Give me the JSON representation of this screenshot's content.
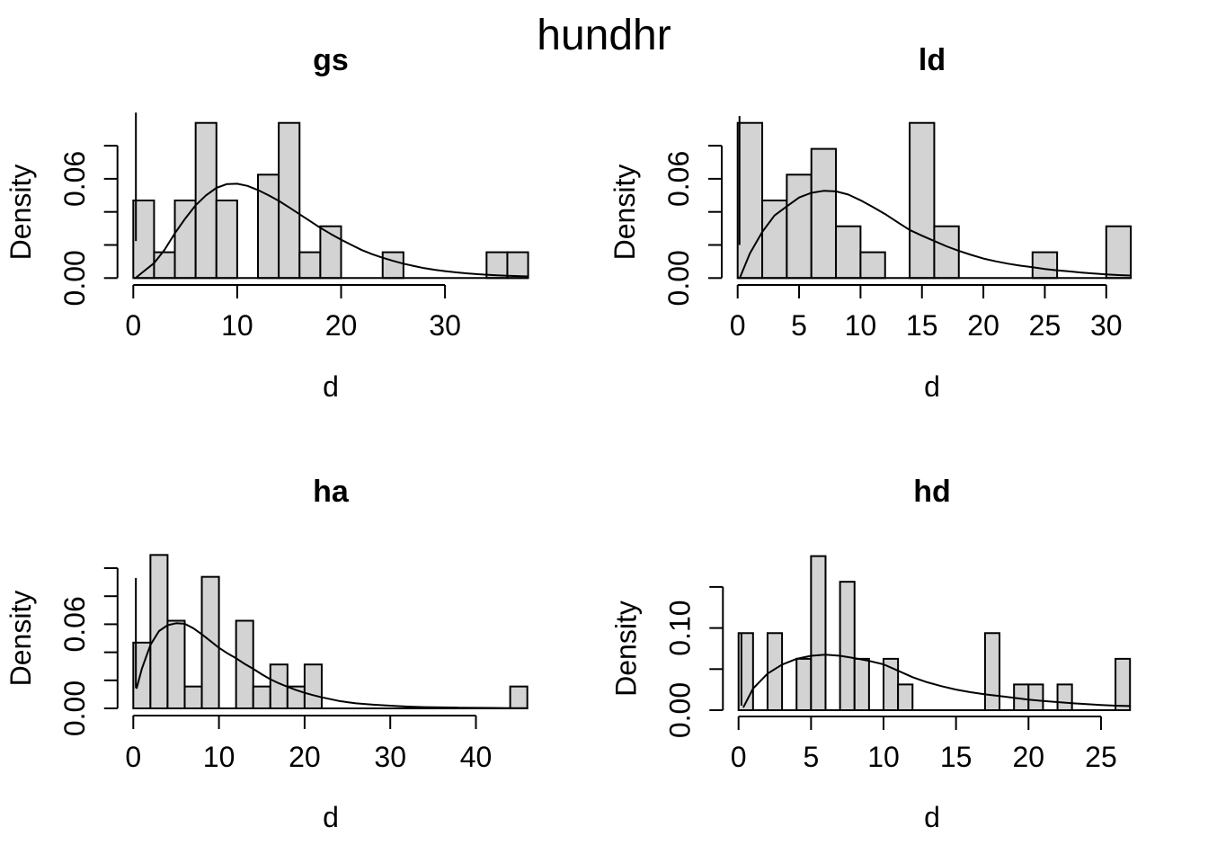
{
  "chart_meta": {
    "title": "hundhr",
    "background_color": "#ffffff",
    "bar_fill_color": "#d3d3d3",
    "bar_border_color": "#000000",
    "curve_color": "#000000",
    "grid": "off",
    "legend": "none"
  },
  "chart_data": [
    {
      "id": "gs",
      "type": "bar",
      "subtype": "histogram-with-density-curve",
      "title": "gs",
      "xlabel": "d",
      "ylabel": "Density",
      "bin_start": 0,
      "bin_width": 2,
      "densities": [
        0.0469,
        0.0156,
        0.0469,
        0.0938,
        0.0469,
        0,
        0.0625,
        0.0938,
        0.0156,
        0.0313,
        0,
        0,
        0.0156,
        0,
        0,
        0,
        0,
        0.0156,
        0.0156
      ],
      "x_ticks": [
        0,
        10,
        20,
        30
      ],
      "x_tick_labels": [
        "0",
        "10",
        "20",
        "30"
      ],
      "y_ticks": [
        0,
        0.02,
        0.04,
        0.06,
        0.08
      ],
      "y_labeled_ticks": [
        {
          "value": 0,
          "label": "0.00"
        },
        {
          "value": 0.06,
          "label": "0.06"
        }
      ],
      "xlim": [
        0,
        38
      ],
      "ylim": [
        0,
        0.0975
      ],
      "spike": {
        "x": 0.25,
        "from": 0.0224,
        "to": 0.1
      },
      "curve": [
        [
          0.3,
          0.0005
        ],
        [
          1,
          0.004
        ],
        [
          2,
          0.009
        ],
        [
          3,
          0.017
        ],
        [
          4,
          0.027
        ],
        [
          5,
          0.036
        ],
        [
          6,
          0.044
        ],
        [
          7,
          0.05
        ],
        [
          8,
          0.0545
        ],
        [
          9,
          0.0568
        ],
        [
          10,
          0.057
        ],
        [
          11,
          0.0557
        ],
        [
          12,
          0.0532
        ],
        [
          13,
          0.0501
        ],
        [
          14,
          0.0467
        ],
        [
          15,
          0.0427
        ],
        [
          16,
          0.0386
        ],
        [
          17,
          0.0345
        ],
        [
          18,
          0.0304
        ],
        [
          19,
          0.0267
        ],
        [
          20,
          0.0232
        ],
        [
          21,
          0.02
        ],
        [
          22,
          0.0169
        ],
        [
          23,
          0.0144
        ],
        [
          24,
          0.0123
        ],
        [
          25,
          0.0104
        ],
        [
          26,
          0.0087
        ],
        [
          27,
          0.0073
        ],
        [
          28,
          0.006
        ],
        [
          29,
          0.005
        ],
        [
          30,
          0.0042
        ],
        [
          31,
          0.0035
        ],
        [
          32,
          0.0029
        ],
        [
          33,
          0.0024
        ],
        [
          34,
          0.002
        ],
        [
          35,
          0.0017
        ],
        [
          36,
          0.0014
        ],
        [
          37,
          0.0012
        ],
        [
          38,
          0.001
        ]
      ]
    },
    {
      "id": "ld",
      "type": "bar",
      "subtype": "histogram-with-density-curve",
      "title": "ld",
      "xlabel": "d",
      "ylabel": "Density",
      "bin_start": 0,
      "bin_width": 2,
      "densities": [
        0.0938,
        0.0469,
        0.0625,
        0.0781,
        0.0313,
        0.0156,
        0,
        0.0938,
        0.0313,
        0,
        0,
        0,
        0.0156,
        0,
        0,
        0.0313
      ],
      "x_ticks": [
        0,
        5,
        10,
        15,
        20,
        25,
        30
      ],
      "x_tick_labels": [
        "0",
        "5",
        "10",
        "15",
        "20",
        "25",
        "30"
      ],
      "y_ticks": [
        0,
        0.02,
        0.04,
        0.06,
        0.08
      ],
      "y_labeled_ticks": [
        {
          "value": 0,
          "label": "0.00"
        },
        {
          "value": 0.06,
          "label": "0.06"
        }
      ],
      "xlim": [
        0,
        32
      ],
      "ylim": [
        0,
        0.0975
      ],
      "spike": {
        "x": 0.15,
        "from": 0.02,
        "to": 0.098
      },
      "curve": [
        [
          0.2,
          0.0005
        ],
        [
          1,
          0.015
        ],
        [
          2,
          0.0278
        ],
        [
          3,
          0.0378
        ],
        [
          4,
          0.0433
        ],
        [
          5,
          0.0487
        ],
        [
          6,
          0.0515
        ],
        [
          7,
          0.0527
        ],
        [
          8,
          0.0524
        ],
        [
          9,
          0.0505
        ],
        [
          10,
          0.047
        ],
        [
          11,
          0.043
        ],
        [
          12,
          0.0387
        ],
        [
          13,
          0.0338
        ],
        [
          14,
          0.0291
        ],
        [
          15,
          0.0256
        ],
        [
          16,
          0.0224
        ],
        [
          17,
          0.0192
        ],
        [
          18,
          0.0164
        ],
        [
          19,
          0.014
        ],
        [
          20,
          0.0118
        ],
        [
          21,
          0.0101
        ],
        [
          22,
          0.0087
        ],
        [
          23,
          0.0075
        ],
        [
          24,
          0.0065
        ],
        [
          25,
          0.0055
        ],
        [
          26,
          0.0047
        ],
        [
          27,
          0.004
        ],
        [
          28,
          0.0033
        ],
        [
          29,
          0.0027
        ],
        [
          30,
          0.0022
        ],
        [
          31,
          0.0018
        ],
        [
          32,
          0.0015
        ]
      ]
    },
    {
      "id": "ha",
      "type": "bar",
      "subtype": "histogram-with-density-curve",
      "title": "ha",
      "xlabel": "d",
      "ylabel": "Density",
      "bin_start": 0,
      "bin_width": 2,
      "densities": [
        0.0469,
        0.1094,
        0.0625,
        0.0156,
        0.0938,
        0,
        0.0625,
        0.0156,
        0.0313,
        0.0156,
        0.0313,
        0,
        0,
        0,
        0,
        0,
        0,
        0,
        0,
        0,
        0,
        0,
        0.0156
      ],
      "x_ticks": [
        0,
        10,
        20,
        30,
        40
      ],
      "x_tick_labels": [
        "0",
        "10",
        "20",
        "30",
        "40"
      ],
      "y_ticks": [
        0,
        0.02,
        0.04,
        0.06,
        0.08,
        0.1
      ],
      "y_labeled_ticks": [
        {
          "value": 0,
          "label": "0.00"
        },
        {
          "value": 0.06,
          "label": "0.06"
        }
      ],
      "xlim": [
        0,
        46
      ],
      "ylim": [
        0,
        0.114
      ],
      "spike": {
        "x": 0.3,
        "from": 0.0145,
        "to": 0.093
      },
      "curve": [
        [
          0.4,
          0.0145
        ],
        [
          1,
          0.0282
        ],
        [
          2,
          0.0453
        ],
        [
          3,
          0.0551
        ],
        [
          4,
          0.0593
        ],
        [
          5,
          0.0607
        ],
        [
          6,
          0.0603
        ],
        [
          7,
          0.0572
        ],
        [
          8,
          0.0528
        ],
        [
          9,
          0.048
        ],
        [
          10,
          0.0432
        ],
        [
          11,
          0.0392
        ],
        [
          12,
          0.0357
        ],
        [
          13,
          0.0317
        ],
        [
          14,
          0.0282
        ],
        [
          15,
          0.0243
        ],
        [
          16,
          0.0208
        ],
        [
          17,
          0.0179
        ],
        [
          18,
          0.0154
        ],
        [
          19,
          0.0131
        ],
        [
          20,
          0.0111
        ],
        [
          21,
          0.0094
        ],
        [
          22,
          0.0079
        ],
        [
          23,
          0.0066
        ],
        [
          24,
          0.0053
        ],
        [
          25,
          0.0044
        ],
        [
          26,
          0.0036
        ],
        [
          28,
          0.0026
        ],
        [
          30,
          0.0019
        ],
        [
          32,
          0.0013
        ],
        [
          34,
          0.0009
        ],
        [
          36,
          0.0007
        ],
        [
          38,
          0.0005
        ],
        [
          40,
          0.0004
        ],
        [
          42,
          0.0003
        ],
        [
          44,
          0.0002
        ],
        [
          46,
          0.0002
        ]
      ]
    },
    {
      "id": "hd",
      "type": "bar",
      "subtype": "histogram-with-density-curve",
      "title": "hd",
      "xlabel": "d",
      "ylabel": "Density",
      "bin_start": 0,
      "bin_width": 1,
      "densities": [
        0.0938,
        0,
        0.0938,
        0,
        0.0625,
        0.1875,
        0,
        0.1563,
        0.0625,
        0,
        0.0625,
        0.0313,
        0,
        0,
        0,
        0,
        0,
        0.0938,
        0,
        0.0313,
        0.0313,
        0,
        0.0313,
        0,
        0,
        0,
        0.0625
      ],
      "x_ticks": [
        0,
        5,
        10,
        15,
        20,
        25
      ],
      "x_tick_labels": [
        "0",
        "5",
        "10",
        "15",
        "20",
        "25"
      ],
      "y_ticks": [
        0,
        0.05,
        0.1,
        0.15
      ],
      "y_labeled_ticks": [
        {
          "value": 0,
          "label": "0.00"
        },
        {
          "value": 0.1,
          "label": "0.10"
        }
      ],
      "xlim": [
        0,
        27
      ],
      "ylim": [
        0,
        0.195
      ],
      "spike": {
        "x": 0.2,
        "from": 0.0055,
        "to": 0.093
      },
      "curve": [
        [
          0.35,
          0.004
        ],
        [
          1,
          0.0263
        ],
        [
          2,
          0.0445
        ],
        [
          3,
          0.0555
        ],
        [
          4,
          0.0625
        ],
        [
          5,
          0.0662
        ],
        [
          6,
          0.0675
        ],
        [
          7,
          0.0662
        ],
        [
          8,
          0.0634
        ],
        [
          9,
          0.06
        ],
        [
          10,
          0.0558
        ],
        [
          11,
          0.048
        ],
        [
          12,
          0.0401
        ],
        [
          13,
          0.034
        ],
        [
          14,
          0.0292
        ],
        [
          15,
          0.025
        ],
        [
          16,
          0.0219
        ],
        [
          17,
          0.0193
        ],
        [
          18,
          0.0172
        ],
        [
          19,
          0.015
        ],
        [
          20,
          0.0128
        ],
        [
          21,
          0.0112
        ],
        [
          22,
          0.0098
        ],
        [
          23,
          0.0085
        ],
        [
          24,
          0.0073
        ],
        [
          25,
          0.0063
        ],
        [
          26,
          0.0055
        ],
        [
          27,
          0.005
        ]
      ]
    }
  ]
}
